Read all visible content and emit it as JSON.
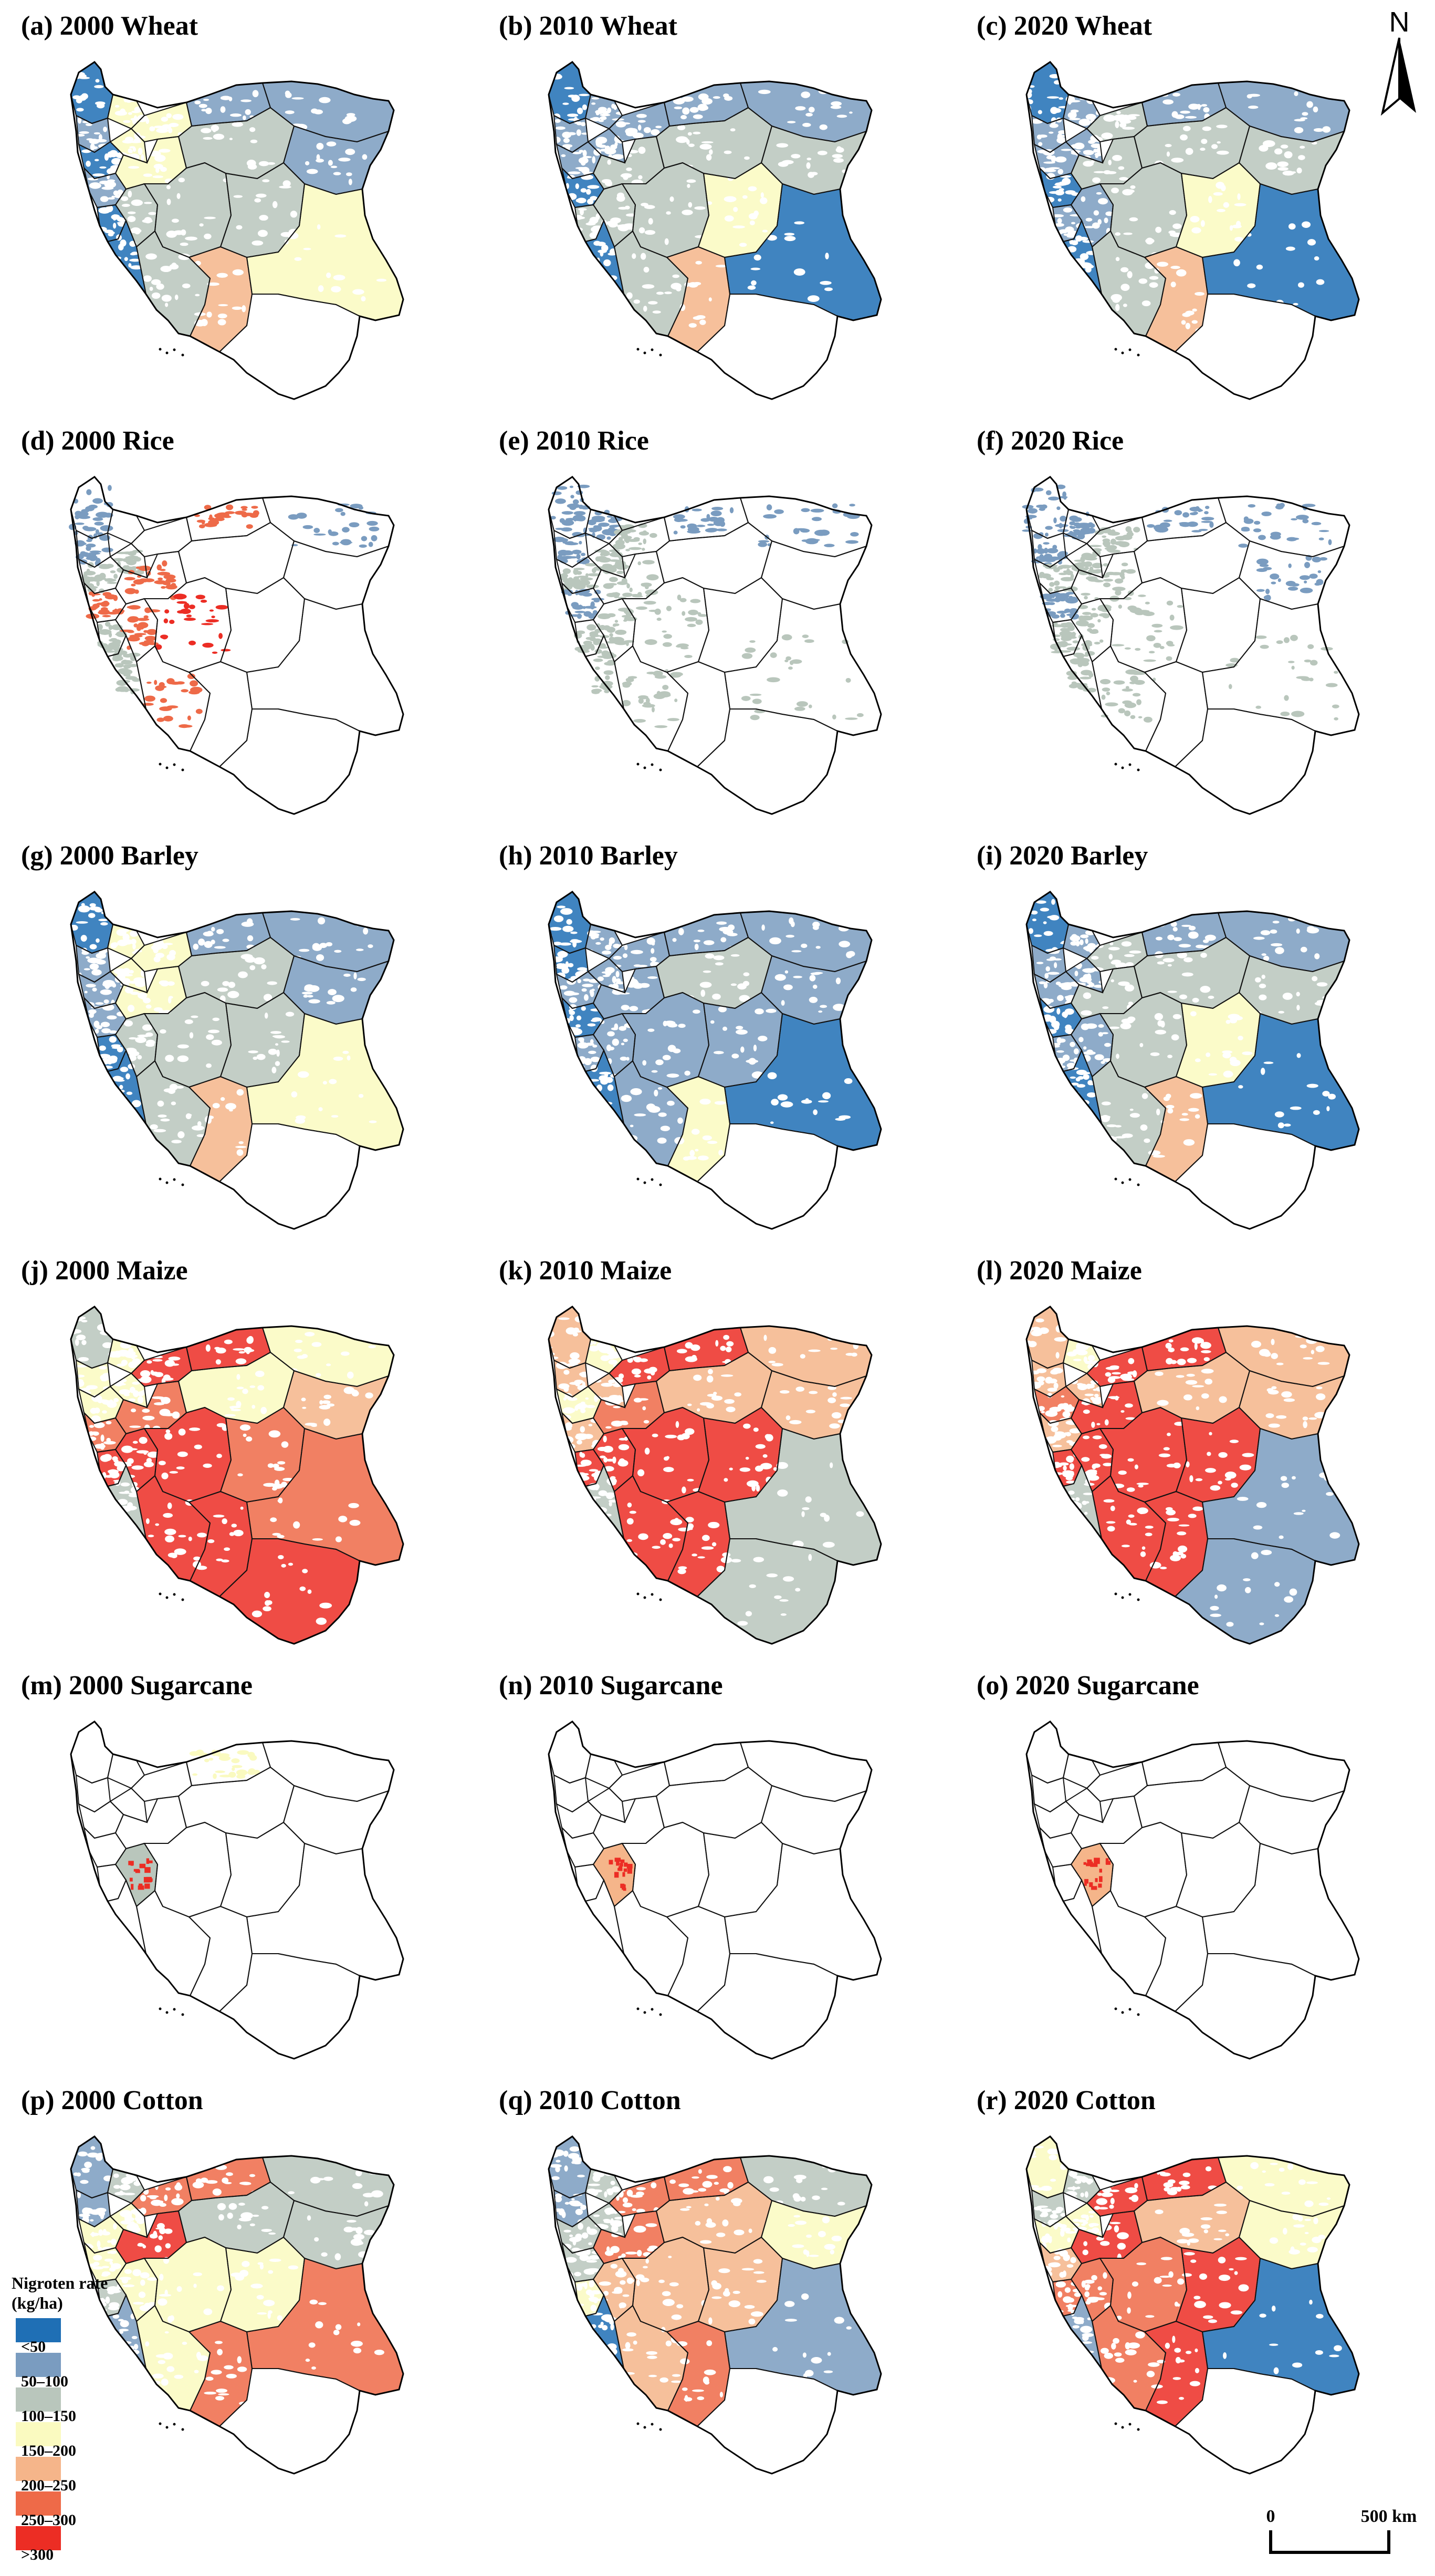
{
  "panels": [
    {
      "id": "a",
      "title": "(a) 2000 Wheat",
      "style": "wheat2000"
    },
    {
      "id": "b",
      "title": "(b) 2010 Wheat",
      "style": "wheat2010"
    },
    {
      "id": "c",
      "title": "(c) 2020 Wheat",
      "style": "wheat2020"
    },
    {
      "id": "d",
      "title": "(d) 2000 Rice",
      "style": "rice2000"
    },
    {
      "id": "e",
      "title": "(e) 2010 Rice",
      "style": "rice2010"
    },
    {
      "id": "f",
      "title": "(f) 2020 Rice",
      "style": "rice2020"
    },
    {
      "id": "g",
      "title": "(g) 2000 Barley",
      "style": "barley2000"
    },
    {
      "id": "h",
      "title": "(h) 2010 Barley",
      "style": "barley2010"
    },
    {
      "id": "i",
      "title": "(i) 2020 Barley",
      "style": "barley2020"
    },
    {
      "id": "j",
      "title": "(j) 2000 Maize",
      "style": "maize2000"
    },
    {
      "id": "k",
      "title": "(k) 2010 Maize",
      "style": "maize2010"
    },
    {
      "id": "l",
      "title": "(l) 2020 Maize",
      "style": "maize2020"
    },
    {
      "id": "m",
      "title": "(m) 2000 Sugarcane",
      "style": "sugar2000"
    },
    {
      "id": "n",
      "title": "(n) 2010 Sugarcane",
      "style": "sugar2010"
    },
    {
      "id": "o",
      "title": "(o) 2020 Sugarcane",
      "style": "sugar2020"
    },
    {
      "id": "p",
      "title": "(p) 2000 Cotton",
      "style": "cotton2000"
    },
    {
      "id": "q",
      "title": "(q) 2010 Cotton",
      "style": "cotton2010"
    },
    {
      "id": "r",
      "title": "(r) 2020 Cotton",
      "style": "cotton2020"
    }
  ],
  "legend": {
    "title_line1": "Nigroten rate",
    "title_line2": "(kg/ha)",
    "classes": [
      {
        "label": "<50",
        "color": "#1f6fb5"
      },
      {
        "label": "50–100",
        "color": "#7a9cc0"
      },
      {
        "label": "100–150",
        "color": "#b9c6bc"
      },
      {
        "label": "150–200",
        "color": "#fafac0"
      },
      {
        "label": "200–250",
        "color": "#f5b58a"
      },
      {
        "label": "250–300",
        "color": "#ee6a48"
      },
      {
        "label": ">300",
        "color": "#ec2d24"
      }
    ]
  },
  "north_arrow": {
    "label": "N"
  },
  "scale_bar": {
    "start_label": "0",
    "end_label": "500 km"
  }
}
